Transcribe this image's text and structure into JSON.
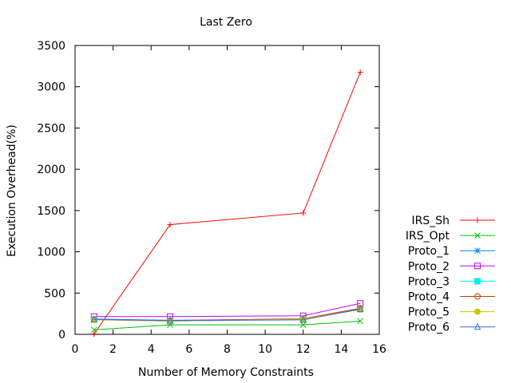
{
  "chart_data": {
    "type": "line",
    "title": "Last Zero",
    "xlabel": "Number of Memory Constraints",
    "ylabel": "Execution Overhead(%)",
    "xlim": [
      0,
      16
    ],
    "ylim": [
      0,
      3500
    ],
    "xticks": [
      0,
      2,
      4,
      6,
      8,
      10,
      12,
      14,
      16
    ],
    "yticks": [
      0,
      500,
      1000,
      1500,
      2000,
      2500,
      3000,
      3500
    ],
    "grid": false,
    "legend_position": "right",
    "x": [
      1,
      5,
      12,
      15
    ],
    "series": [
      {
        "name": "IRS_Sh",
        "values": [
          5,
          1330,
          1470,
          3175
        ],
        "color": "#ff0000",
        "marker": "plus"
      },
      {
        "name": "IRS_Opt",
        "values": [
          55,
          115,
          115,
          160
        ],
        "color": "#00c000",
        "marker": "cross"
      },
      {
        "name": "Proto_1",
        "values": [
          185,
          170,
          185,
          310
        ],
        "color": "#0080ff",
        "marker": "star"
      },
      {
        "name": "Proto_2",
        "values": [
          215,
          215,
          225,
          375
        ],
        "color": "#c000ff",
        "marker": "open-square"
      },
      {
        "name": "Proto_3",
        "values": [
          180,
          160,
          185,
          305
        ],
        "color": "#00eeee",
        "marker": "filled-square"
      },
      {
        "name": "Proto_4",
        "values": [
          180,
          165,
          190,
          315
        ],
        "color": "#c04000",
        "marker": "open-circle"
      },
      {
        "name": "Proto_5",
        "values": [
          175,
          160,
          185,
          300
        ],
        "color": "#c8c800",
        "marker": "filled-circle"
      },
      {
        "name": "Proto_6",
        "values": [
          180,
          165,
          175,
          305
        ],
        "color": "#4169e1",
        "marker": "open-triangle"
      }
    ]
  }
}
